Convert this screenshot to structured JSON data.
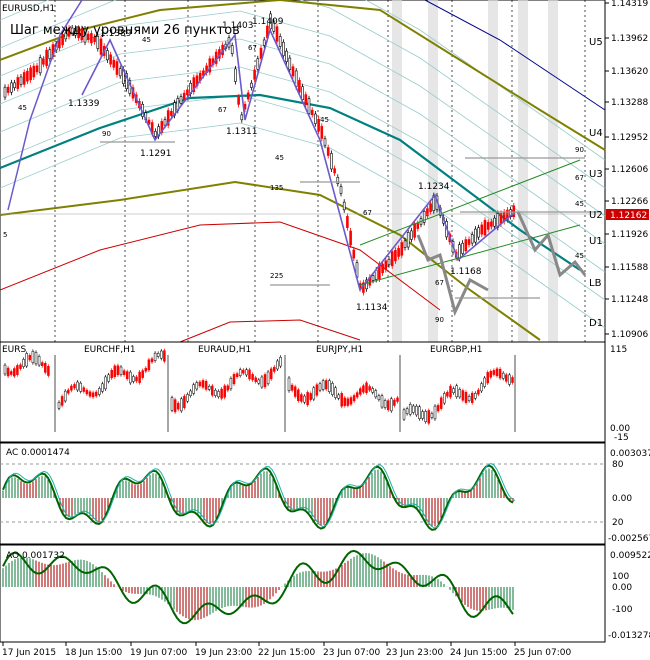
{
  "main": {
    "symbol_label": "EURUSD,H1",
    "title": "Шаг между уровнями 26 пунктов",
    "price_axis": [
      "1.14319",
      "1.13962",
      "1.13620",
      "1.13288",
      "1.12952",
      "1.12606",
      "1.12266",
      "1.11926",
      "1.11588",
      "1.11248",
      "1.10906"
    ],
    "current_price": "1.12162",
    "level_labels": [
      "U5",
      "U4",
      "U3",
      "U2",
      "U1",
      "LB",
      "D1"
    ],
    "pivot_labels": [
      "1.1389",
      "1.1339",
      "1.1291",
      "1.1403",
      "1.1409",
      "1.1311",
      "1.1234",
      "1.1168",
      "1.1134"
    ],
    "fib_labels": [
      "45",
      "45",
      "90",
      "67",
      "67",
      "45",
      "135",
      "67",
      "45",
      "225",
      "67",
      "90",
      "90",
      "67",
      "45",
      "45",
      "5"
    ]
  },
  "sub1": {
    "labels": [
      "EURCHF,H1",
      "EURAUD,H1",
      "EURJPY,H1",
      "EURGBP,H1"
    ],
    "left_label": "EURS",
    "axis": [
      "115",
      "0.00",
      "-15"
    ]
  },
  "ac": {
    "label": "AC 0.0001474",
    "axis": [
      "0.003037",
      "80",
      "0.00",
      "20",
      "-0.002567"
    ]
  },
  "ao": {
    "label": "AO 0.001732",
    "axis": [
      "0.009522",
      "100",
      "0.00",
      "-100",
      "-0.013278"
    ]
  },
  "time_axis": [
    "17 Jun 2015",
    "18 Jun 15:00",
    "19 Jun 07:00",
    "19 Jun 23:00",
    "22 Jun 15:00",
    "23 Jun 07:00",
    "23 Jun 23:00",
    "24 Jun 15:00",
    "25 Jun 07:00"
  ],
  "colors": {
    "bull": "#000000",
    "bear": "#ff0000",
    "zigzag": "#6a5acd",
    "teal_ma": "#008080",
    "olive_ma": "#808000",
    "band_light": "#99cccc",
    "green_channel": "#228b22",
    "ac_line": "#006400",
    "navy_line": "#00008b"
  }
}
